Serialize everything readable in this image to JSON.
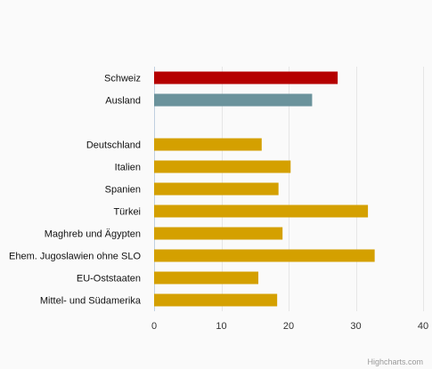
{
  "chart_data": {
    "type": "bar",
    "orientation": "horizontal",
    "title": "",
    "xlabel": "",
    "ylabel": "",
    "xlim": [
      0,
      40
    ],
    "x_ticks": [
      0,
      10,
      20,
      30,
      40
    ],
    "grid": true,
    "legend": "none",
    "categories": [
      "Schweiz",
      "Ausland",
      "",
      "Deutschland",
      "Italien",
      "Spanien",
      "Türkei",
      "Maghreb und Ägypten",
      "Ehem. Jugoslawien ohne SLO",
      "EU-Oststaaten",
      "Mittel- und Südamerika"
    ],
    "values": [
      27.3,
      23.5,
      null,
      16.0,
      20.3,
      18.5,
      31.8,
      19.1,
      32.8,
      15.5,
      18.3
    ],
    "colors": [
      "#b50000",
      "#6b939c",
      null,
      "#d4a000",
      "#d4a000",
      "#d4a000",
      "#d4a000",
      "#d4a000",
      "#d4a000",
      "#d4a000",
      "#d4a000"
    ]
  },
  "credits": "Highcharts.com"
}
